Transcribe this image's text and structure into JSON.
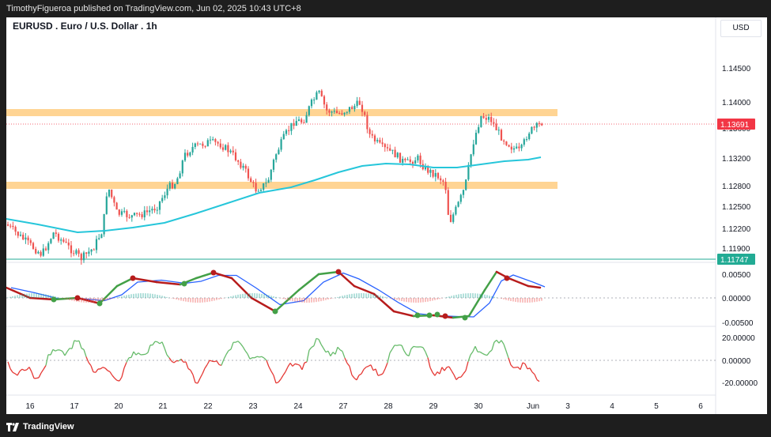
{
  "header": {
    "publish_text": "TimothyFigueroa published on TradingView.com, Jun 02, 2025 10:43 UTC+8"
  },
  "symbol": {
    "title": "EURUSD . Euro / U.S. Dollar . 1h"
  },
  "currency_label": "USD",
  "price_axis": {
    "ticks": [
      "1.14500",
      "1.14000",
      "1.13600",
      "1.13200",
      "1.12800",
      "1.12500",
      "1.12200",
      "1.11900"
    ],
    "current_price": "1.13691",
    "line_label": "1.11747"
  },
  "indicator1_axis": {
    "ticks": [
      "0.00500",
      "0.00000",
      "-0.00500"
    ]
  },
  "indicator2_axis": {
    "ticks": [
      "20.00000",
      "0.00000",
      "-20.00000"
    ]
  },
  "time_axis": {
    "ticks": [
      "16",
      "17",
      "20",
      "21",
      "22",
      "23",
      "24",
      "27",
      "28",
      "29",
      "30",
      "Jun",
      "3",
      "4",
      "5",
      "6"
    ]
  },
  "footer": {
    "brand": "TradingView"
  },
  "colors": {
    "up_candle": "#26a69a",
    "down_candle": "#ef5350",
    "zone": "#ffcc80",
    "ma_line": "#26c6da",
    "price_badge": "#f23645",
    "line_badge": "#22ab94"
  }
}
